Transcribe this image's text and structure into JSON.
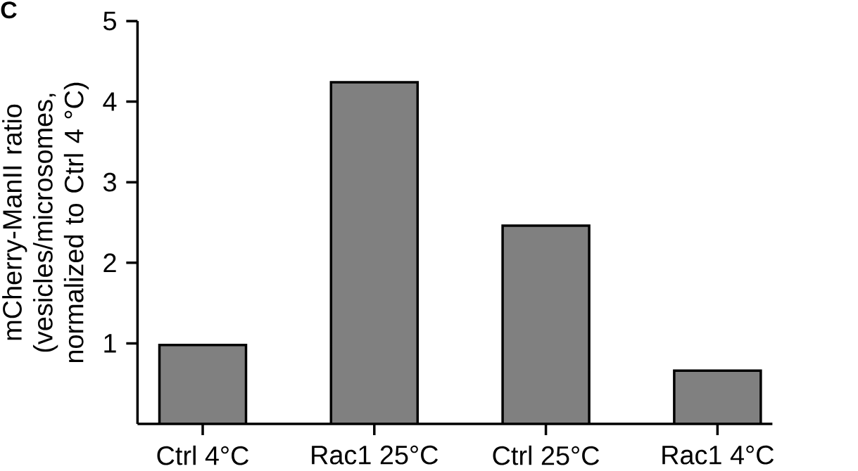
{
  "chart_data": {
    "type": "bar",
    "ylabel": "mCherry-ManII ratio (vesicles/microsomes, normalized to Ctrl 4 °C)",
    "categories": [
      "Ctrl 4°C",
      "Rac1 25°C",
      "Ctrl 25°C",
      "Rac1 4°C"
    ],
    "values": [
      0.98,
      4.24,
      2.46,
      0.66
    ],
    "color": "#808080",
    "ylim": [
      0,
      5
    ],
    "yticks": [
      1,
      2,
      3,
      4,
      5
    ],
    "grid": false,
    "annotations": [
      "C"
    ]
  }
}
